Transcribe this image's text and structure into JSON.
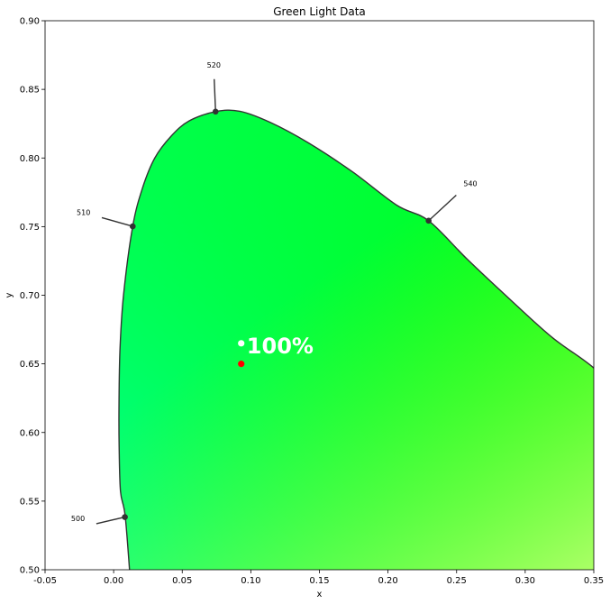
{
  "chart_data": {
    "type": "scatter",
    "title": "Green Light Data",
    "xlabel": "x",
    "ylabel": "y",
    "xlim": [
      -0.05,
      0.35
    ],
    "ylim": [
      0.5,
      0.9
    ],
    "xticks": [
      "-0.05",
      "0.00",
      "0.05",
      "0.10",
      "0.15",
      "0.20",
      "0.25",
      "0.30",
      "0.35"
    ],
    "yticks": [
      "0.50",
      "0.55",
      "0.60",
      "0.65",
      "0.70",
      "0.75",
      "0.80",
      "0.85",
      "0.90"
    ],
    "grid": false,
    "spectral_locus": {
      "color": "#333333",
      "points": [
        [
          0.0126,
          0.4859
        ],
        [
          0.0085,
          0.5384
        ],
        [
          0.005,
          0.557
        ],
        [
          0.004,
          0.59
        ],
        [
          0.0039,
          0.62
        ],
        [
          0.0046,
          0.66
        ],
        [
          0.0072,
          0.7
        ],
        [
          0.0139,
          0.7502
        ],
        [
          0.021,
          0.778
        ],
        [
          0.03,
          0.8
        ],
        [
          0.042,
          0.816
        ],
        [
          0.055,
          0.827
        ],
        [
          0.0743,
          0.8338
        ],
        [
          0.092,
          0.834
        ],
        [
          0.114,
          0.826
        ],
        [
          0.142,
          0.811
        ],
        [
          0.174,
          0.79
        ],
        [
          0.2065,
          0.7655
        ],
        [
          0.2296,
          0.7543
        ],
        [
          0.258,
          0.726
        ],
        [
          0.29,
          0.696
        ],
        [
          0.32,
          0.669
        ],
        [
          0.35,
          0.647
        ],
        [
          0.38,
          0.618
        ]
      ]
    },
    "wavelength_markers": [
      {
        "label": "500",
        "x": 0.0082,
        "y": 0.5384,
        "label_x": -0.031,
        "label_y": 0.5355
      },
      {
        "label": "510",
        "x": 0.0139,
        "y": 0.7502,
        "label_x": -0.027,
        "label_y": 0.7585
      },
      {
        "label": "520",
        "x": 0.0743,
        "y": 0.8338,
        "label_x": 0.068,
        "label_y": 0.866
      },
      {
        "label": "540",
        "x": 0.2296,
        "y": 0.7543,
        "label_x": 0.255,
        "label_y": 0.7795
      }
    ],
    "series": [
      {
        "x": [
          0.093
        ],
        "y": [
          0.665
        ],
        "color": "#ffffff"
      },
      {
        "x": [
          0.093
        ],
        "y": [
          0.65
        ],
        "color": "#ff0000"
      }
    ],
    "annotations": [
      {
        "text": "100%",
        "x": 0.097,
        "y": 0.663,
        "color": "#ffffff"
      }
    ],
    "colors": {
      "green": "#00ff00",
      "cyan_green": "#00ffaa",
      "yellow_green": "#aaff55",
      "locus": "#333333"
    }
  }
}
